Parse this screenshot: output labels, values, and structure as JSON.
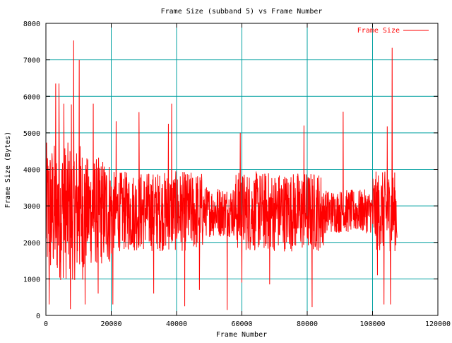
{
  "chart_data": {
    "type": "line",
    "title": "Frame Size (subband 5) vs Frame Number",
    "xlabel": "Frame Number",
    "ylabel": "Frame Size (Bytes)",
    "xlim": [
      0,
      120000
    ],
    "ylim": [
      0,
      8000
    ],
    "xticks": [
      0,
      20000,
      40000,
      60000,
      80000,
      100000,
      120000
    ],
    "yticks": [
      0,
      1000,
      2000,
      3000,
      4000,
      5000,
      6000,
      7000,
      8000
    ],
    "x_tick_labels": [
      "0",
      "20000",
      "40000",
      "60000",
      "80000",
      "100000",
      "120000"
    ],
    "y_tick_labels": [
      "0",
      "1000",
      "2000",
      "3000",
      "4000",
      "5000",
      "6000",
      "7000",
      "8000"
    ],
    "grid": true,
    "grid_color": "#00a0a0",
    "legend_position": "top-right",
    "series": [
      {
        "name": "Frame Size",
        "color": "#ff0000",
        "x_start": 0,
        "x_end": 107500,
        "baseline": 2850,
        "spikes": [
          {
            "x": 1000,
            "y": 300
          },
          {
            "x": 3000,
            "y": 6350
          },
          {
            "x": 4000,
            "y": 6350
          },
          {
            "x": 5500,
            "y": 5800
          },
          {
            "x": 7500,
            "y": 170
          },
          {
            "x": 7800,
            "y": 5780
          },
          {
            "x": 8500,
            "y": 7530
          },
          {
            "x": 10200,
            "y": 7000
          },
          {
            "x": 12000,
            "y": 300
          },
          {
            "x": 14500,
            "y": 5800
          },
          {
            "x": 16000,
            "y": 600
          },
          {
            "x": 20500,
            "y": 300
          },
          {
            "x": 21500,
            "y": 5320
          },
          {
            "x": 28500,
            "y": 5570
          },
          {
            "x": 33000,
            "y": 600
          },
          {
            "x": 37500,
            "y": 5250
          },
          {
            "x": 38500,
            "y": 5800
          },
          {
            "x": 42500,
            "y": 250
          },
          {
            "x": 47000,
            "y": 700
          },
          {
            "x": 55500,
            "y": 150
          },
          {
            "x": 59500,
            "y": 5000
          },
          {
            "x": 60000,
            "y": 900
          },
          {
            "x": 68500,
            "y": 850
          },
          {
            "x": 79000,
            "y": 5200
          },
          {
            "x": 81500,
            "y": 230
          },
          {
            "x": 91000,
            "y": 5580
          },
          {
            "x": 101500,
            "y": 1100
          },
          {
            "x": 103500,
            "y": 300
          },
          {
            "x": 104500,
            "y": 5180
          },
          {
            "x": 105500,
            "y": 300
          },
          {
            "x": 106000,
            "y": 7330
          }
        ]
      }
    ]
  }
}
